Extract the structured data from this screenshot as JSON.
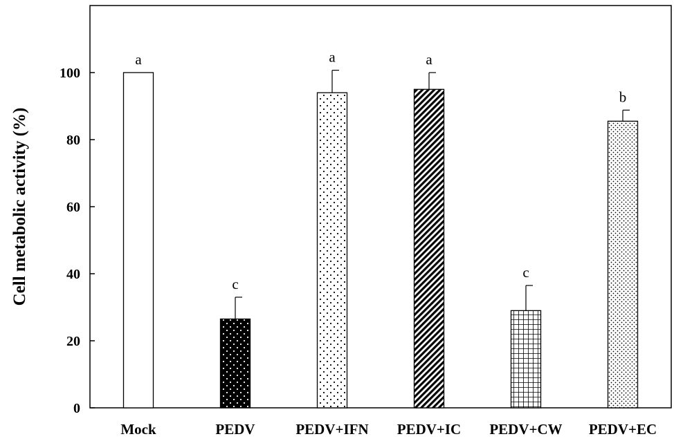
{
  "chart_data": {
    "type": "bar",
    "ylabel": "Cell metabolic activity (%)",
    "xlabel": "",
    "ylim": [
      0,
      120
    ],
    "yticks": [
      0,
      20,
      40,
      60,
      80,
      100
    ],
    "grid": false,
    "categories": [
      "Mock",
      "PEDV",
      "PEDV+IFN",
      "PEDV+IC",
      "PEDV+CW",
      "PEDV+EC"
    ],
    "values": [
      100,
      26.5,
      94,
      95,
      29,
      85.5
    ],
    "errors": [
      0,
      6.5,
      6.7,
      5,
      7.5,
      3.3
    ],
    "significance": [
      "a",
      "c",
      "a",
      "a",
      "c",
      "b"
    ],
    "fill_patterns": [
      "empty",
      "black-with-white-dots",
      "sparse-dots",
      "diagonal-stripes",
      "grid",
      "dense-dots"
    ]
  }
}
